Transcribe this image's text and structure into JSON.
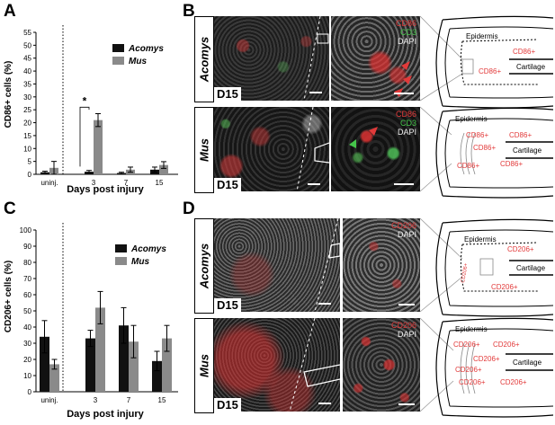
{
  "panels": {
    "A": {
      "letter": "A"
    },
    "B": {
      "letter": "B"
    },
    "C": {
      "letter": "C"
    },
    "D": {
      "letter": "D"
    }
  },
  "colors": {
    "acomys": "#111111",
    "mus": "#8a8a8a",
    "red_stain": "#e23a3a",
    "green_stain": "#45c54a"
  },
  "chart_data": [
    {
      "type": "bar",
      "panel": "A",
      "categories": [
        "uninj.",
        "3",
        "7",
        "15"
      ],
      "series": [
        {
          "name": "Acomys",
          "values": [
            0.8,
            1.0,
            0.5,
            1.8
          ],
          "errors": [
            0.4,
            0.5,
            0.3,
            1.0
          ]
        },
        {
          "name": "Mus",
          "values": [
            2.5,
            21.0,
            1.8,
            3.6
          ],
          "errors": [
            2.5,
            2.5,
            1.0,
            1.3
          ]
        }
      ],
      "xlabel": "Days post injury",
      "ylabel": "CD86+ cells (%)",
      "ylim": [
        0,
        55
      ],
      "yticks": [
        0,
        5,
        10,
        15,
        20,
        25,
        30,
        35,
        40,
        45,
        50,
        55
      ],
      "annotation": "*",
      "legend": "top-right",
      "grid": false
    },
    {
      "type": "bar",
      "panel": "C",
      "categories": [
        "uninj.",
        "3",
        "7",
        "15"
      ],
      "series": [
        {
          "name": "Acomys",
          "values": [
            34,
            33,
            41,
            19
          ],
          "errors": [
            10,
            5,
            11,
            6
          ]
        },
        {
          "name": "Mus",
          "values": [
            17,
            52,
            31,
            33
          ],
          "errors": [
            3,
            10,
            10,
            8
          ]
        }
      ],
      "xlabel": "Days post injury",
      "ylabel": "CD206+ cells (%)",
      "ylim": [
        0,
        100
      ],
      "yticks": [
        0,
        10,
        20,
        30,
        40,
        50,
        60,
        70,
        80,
        90,
        100
      ],
      "legend": "top-right",
      "grid": false
    }
  ],
  "micrographs": {
    "B_top": {
      "row_label": "Acomys",
      "day": "D15",
      "stains": [
        "CD86",
        "CD3",
        "DAPI"
      ]
    },
    "B_bottom": {
      "row_label": "Mus",
      "day": "D15",
      "stains": [
        "CD86",
        "CD3",
        "DAPI"
      ]
    },
    "D_top": {
      "row_label": "Acomys",
      "day": "D15",
      "stains": [
        "CD206",
        "DAPI"
      ]
    },
    "D_bottom": {
      "row_label": "Mus",
      "day": "D15",
      "stains": [
        "CD206",
        "DAPI"
      ]
    }
  },
  "schematics": {
    "B_top": {
      "epidermis": "Epidermis",
      "cartilage": "Cartilage",
      "markers": [
        "CD86+",
        "CD86+"
      ]
    },
    "B_bottom": {
      "epidermis": "Epidermis",
      "cartilage": "Cartilage",
      "markers": [
        "CD86+",
        "CD86+",
        "CD86+",
        "CD86+",
        "CD86+"
      ]
    },
    "D_top": {
      "epidermis": "Epidermis",
      "cartilage": "Cartilage",
      "markers": [
        "CD206+",
        "CD206+",
        "CD206+"
      ]
    },
    "D_bottom": {
      "epidermis": "Epidermis",
      "cartilage": "Cartilage",
      "markers": [
        "CD206+",
        "CD206+",
        "CD206+",
        "CD206+",
        "CD206+",
        "CD206+"
      ]
    }
  }
}
